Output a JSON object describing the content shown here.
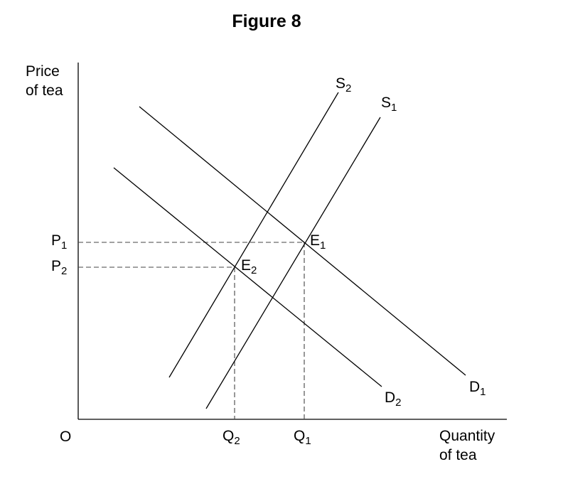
{
  "figure": {
    "title": "Figure 8",
    "origin_label": "O",
    "y_axis_label": [
      "Price",
      "of tea"
    ],
    "x_axis_label": [
      "Quantity",
      "of tea"
    ]
  },
  "curves": {
    "s1": {
      "main": "S",
      "sub": "1"
    },
    "s2": {
      "main": "S",
      "sub": "2"
    },
    "d1": {
      "main": "D",
      "sub": "1"
    },
    "d2": {
      "main": "D",
      "sub": "2"
    }
  },
  "points": {
    "e1": {
      "main": "E",
      "sub": "1"
    },
    "e2": {
      "main": "E",
      "sub": "2"
    }
  },
  "ticks": {
    "p1": {
      "main": "P",
      "sub": "1"
    },
    "p2": {
      "main": "P",
      "sub": "2"
    },
    "q1": {
      "main": "Q",
      "sub": "1"
    },
    "q2": {
      "main": "Q",
      "sub": "2"
    }
  }
}
